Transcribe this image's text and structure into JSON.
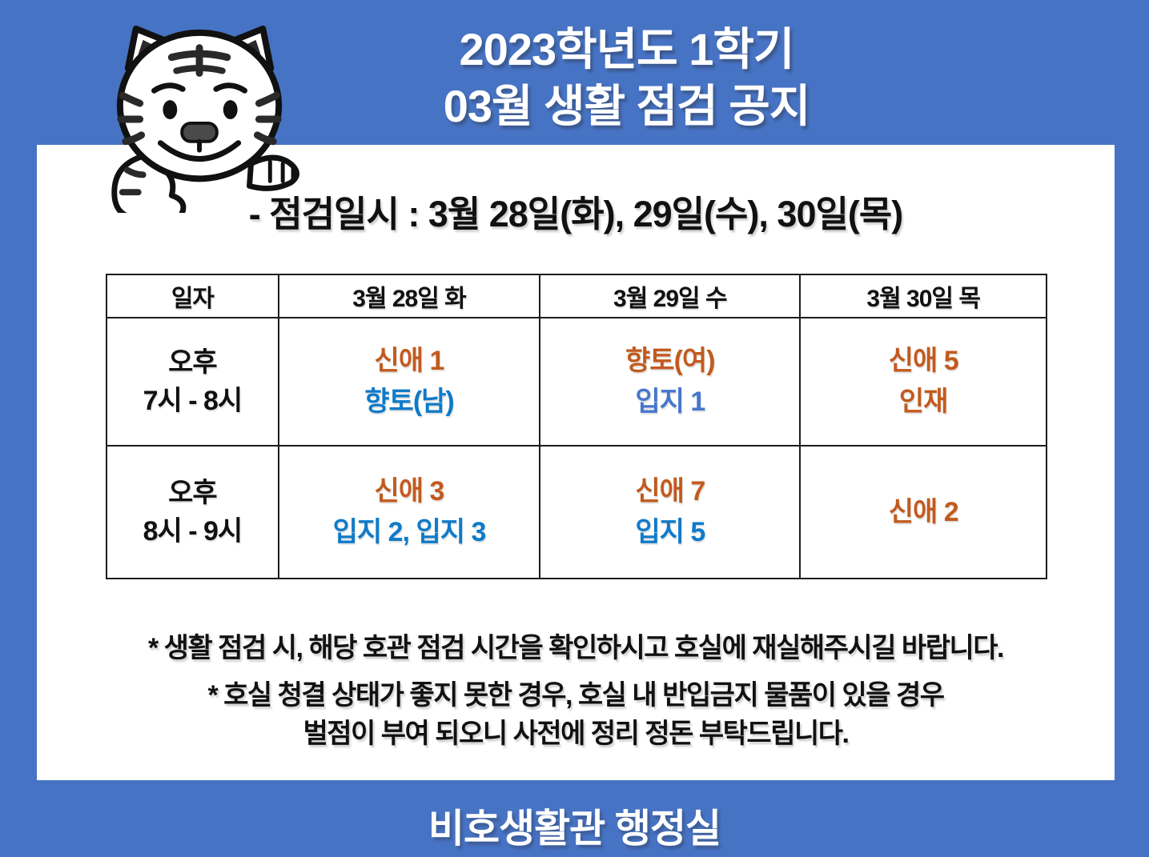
{
  "colors": {
    "background": "#4773C4",
    "orange": "#C25A1E",
    "blue": "#0F7AC9",
    "mutedBlue": "#4676CE",
    "black": "#111111",
    "white": "#FFFFFF"
  },
  "icons": {
    "mascot": "tiger-mascot"
  },
  "header": {
    "title_line1": "2023학년도 1학기",
    "title_line2": "03월 생활 점검 공지"
  },
  "notice": {
    "inspection_schedule": "- 점검일시 :  3월 28일(화), 29일(수), 30일(목)"
  },
  "table": {
    "columns": [
      "일자",
      "3월 28일 화",
      "3월 29일 수",
      "3월 30일 목"
    ],
    "rows": [
      {
        "time_line1": "오후",
        "time_line2": "7시 - 8시",
        "cells": [
          {
            "lines": [
              {
                "text": "신애 1",
                "color": "orange"
              },
              {
                "text": "향토(남)",
                "color": "blue"
              }
            ]
          },
          {
            "lines": [
              {
                "text": "향토(여)",
                "color": "orange"
              },
              {
                "text": "입지 1",
                "color": "mutedBlue"
              }
            ]
          },
          {
            "lines": [
              {
                "text": "신애 5",
                "color": "orange"
              },
              {
                "text": "인재",
                "color": "orange"
              }
            ]
          }
        ]
      },
      {
        "time_line1": "오후",
        "time_line2": "8시 - 9시",
        "cells": [
          {
            "lines": [
              {
                "text": "신애 3",
                "color": "orange"
              },
              {
                "text": "입지 2, 입지 3",
                "color": "blue"
              }
            ]
          },
          {
            "lines": [
              {
                "text": "신애 7",
                "color": "orange"
              },
              {
                "text": "입지 5",
                "color": "blue"
              }
            ]
          },
          {
            "lines": [
              {
                "text": "신애 2",
                "color": "orange"
              }
            ]
          }
        ]
      }
    ]
  },
  "notes": {
    "note1": "* 생활 점검 시,  해당 호관 점검 시간을 확인하시고 호실에 재실해주시길 바랍니다.",
    "note2_line1": "* 호실 청결 상태가 좋지 못한 경우, 호실 내 반입금지 물품이 있을 경우",
    "note2_line2": "벌점이 부여 되오니 사전에 정리 정돈 부탁드립니다."
  },
  "footer": {
    "office": "비호생활관 행정실"
  }
}
